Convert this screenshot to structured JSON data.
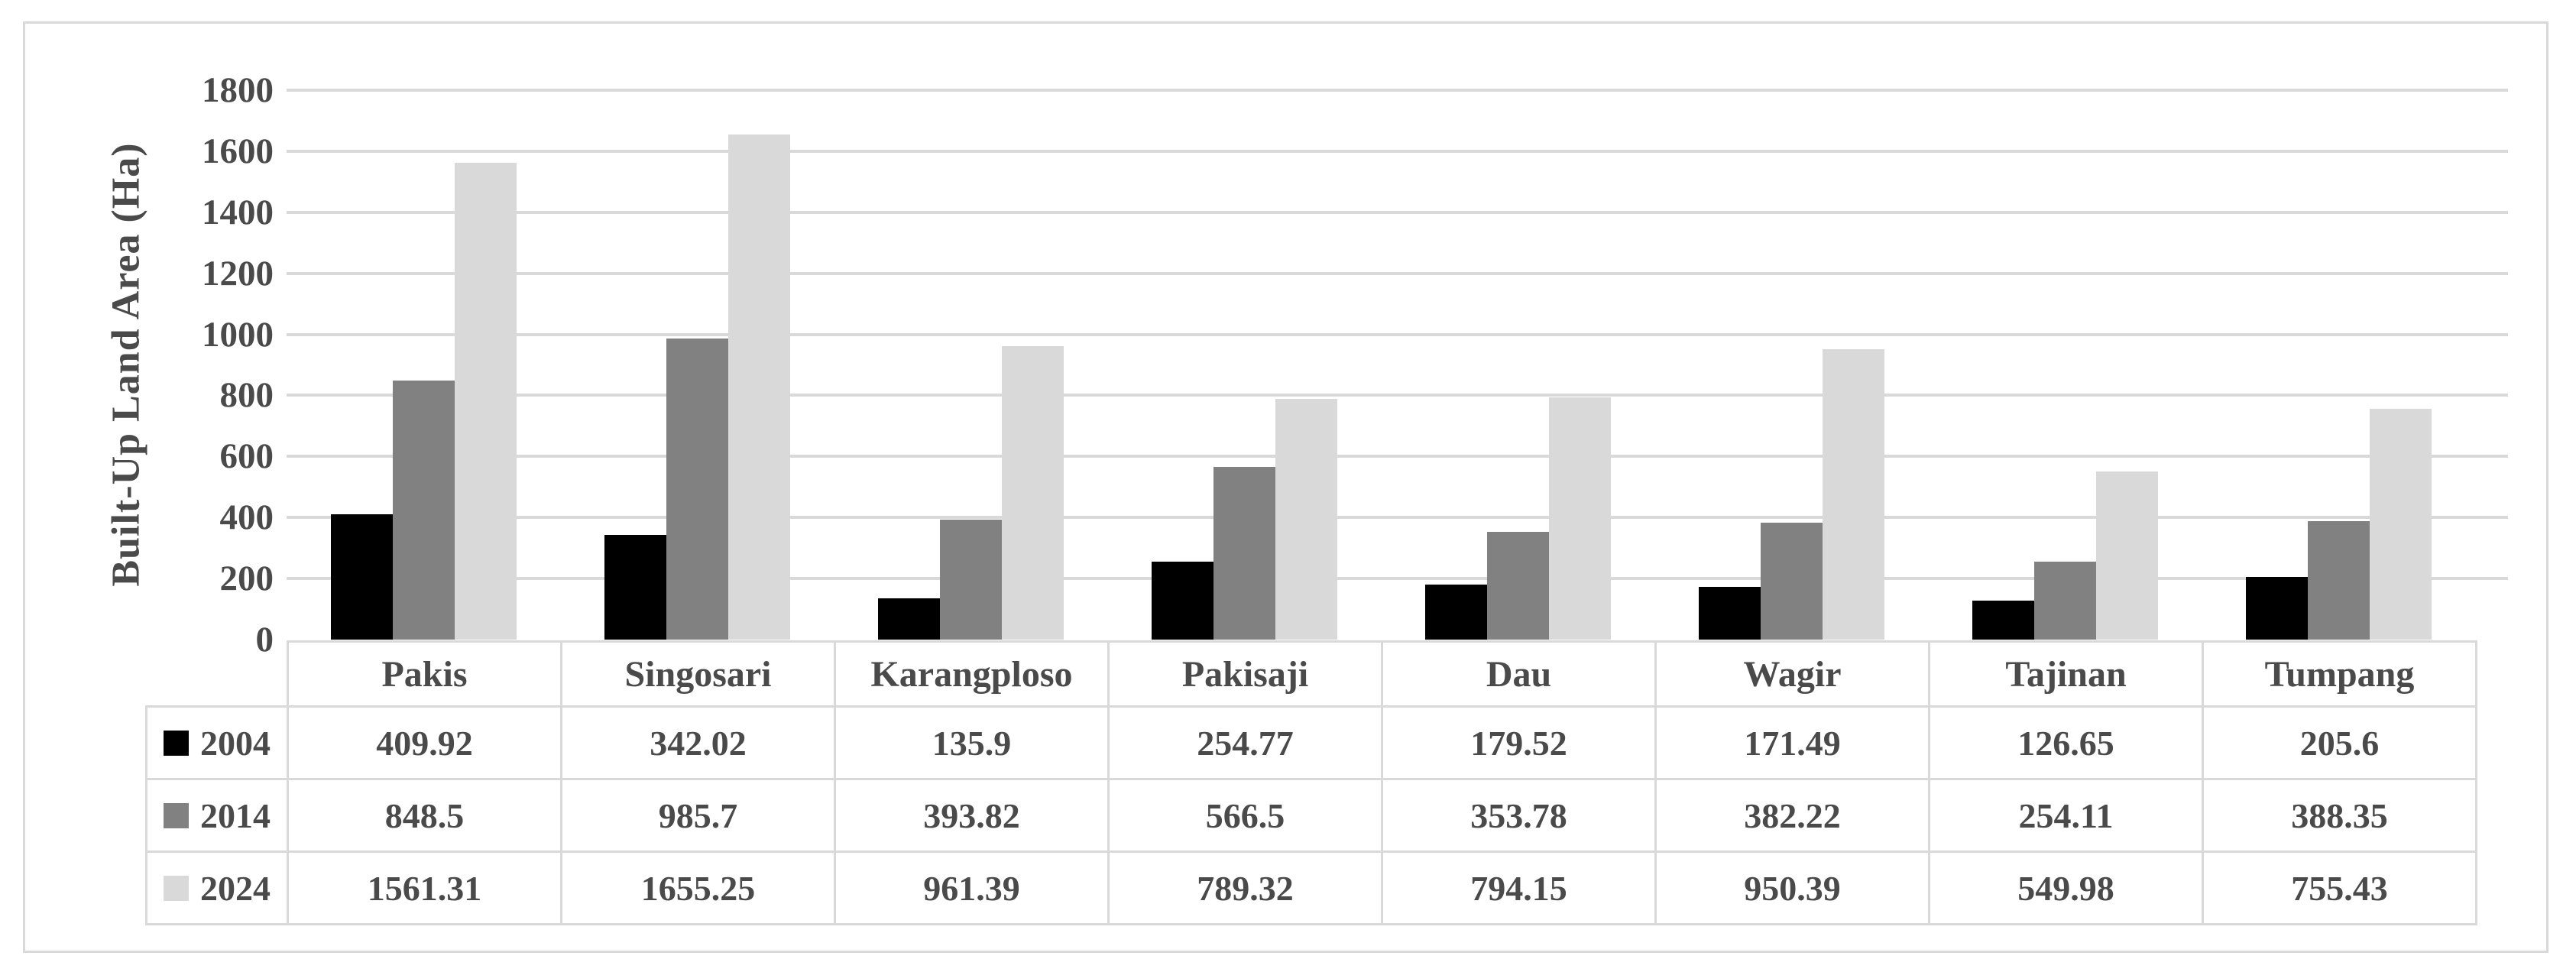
{
  "chart_data": {
    "type": "bar",
    "title": "",
    "ylabel": "Built-Up Land Area (Ha)",
    "categories": [
      "Pakis",
      "Singosari",
      "Karangploso",
      "Pakisaji",
      "Dau",
      "Wagir",
      "Tajinan",
      "Tumpang"
    ],
    "series": [
      {
        "name": "2004",
        "color": "#000000",
        "values": [
          409.92,
          342.02,
          135.9,
          254.77,
          179.52,
          171.49,
          126.65,
          205.6
        ]
      },
      {
        "name": "2014",
        "color": "#818181",
        "values": [
          848.5,
          985.7,
          393.82,
          566.5,
          353.78,
          382.22,
          254.11,
          388.35
        ]
      },
      {
        "name": "2024",
        "color": "#d9d9d9",
        "values": [
          1561.31,
          1655.25,
          961.39,
          789.32,
          794.15,
          950.39,
          549.98,
          755.43
        ]
      }
    ],
    "ylim": [
      0,
      1800
    ],
    "yticks": [
      0,
      200,
      400,
      600,
      800,
      1000,
      1200,
      1400,
      1600,
      1800
    ],
    "grid": "horizontal",
    "legend_position": "data-table-row-keys",
    "grid_color": "#d9d9d9",
    "table_border_color": "#d9d9d9",
    "frame_border_color": "#d9d9d9",
    "text_color": "#4a4a4a"
  }
}
